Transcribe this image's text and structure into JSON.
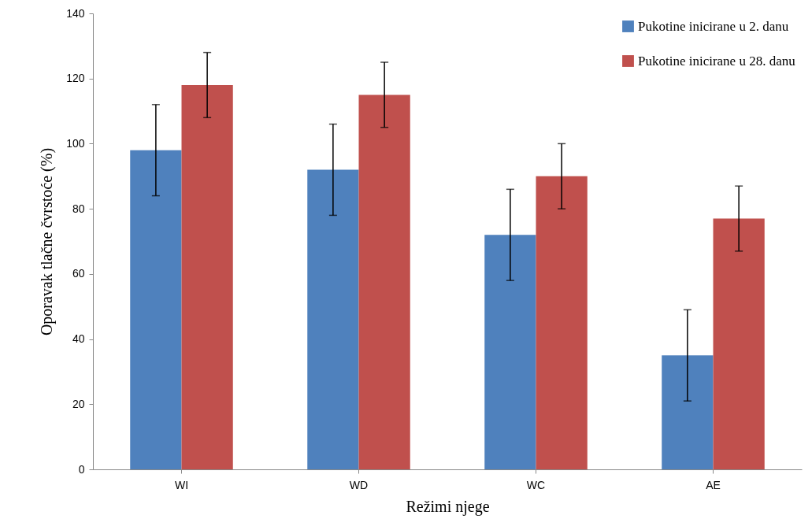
{
  "chart_data": {
    "type": "bar",
    "xlabel": "Režimi njege",
    "ylabel": "Oporavak tlačne čvrstoće (%)",
    "categories": [
      "WI",
      "WD",
      "WC",
      "AE"
    ],
    "series": [
      {
        "name": "Pukotine inicirane u 2. danu",
        "color": "#4f81bd",
        "values": [
          98,
          92,
          72,
          35
        ],
        "errors": [
          14,
          14,
          14,
          14
        ]
      },
      {
        "name": "Pukotine inicirane u 28. danu",
        "color": "#c0504d",
        "values": [
          118,
          115,
          90,
          77
        ],
        "errors": [
          10,
          10,
          10,
          10
        ]
      }
    ],
    "ylim": [
      0,
      140
    ],
    "yticks": [
      0,
      20,
      40,
      60,
      80,
      100,
      120,
      140
    ],
    "grid": false,
    "legend": "top right"
  }
}
